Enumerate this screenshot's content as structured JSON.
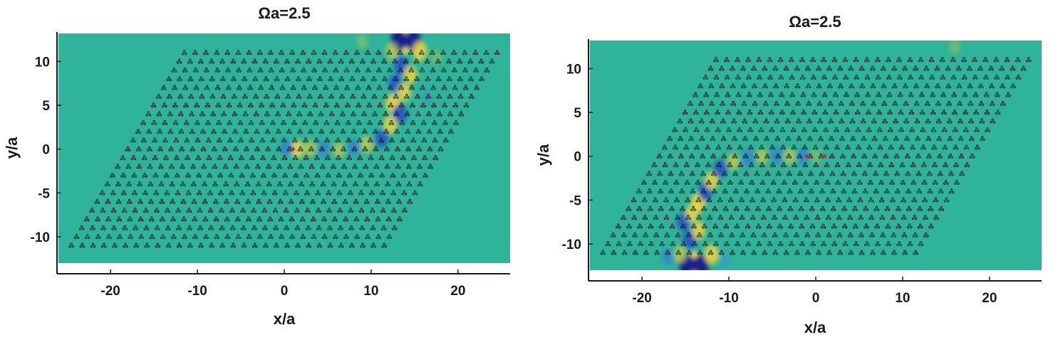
{
  "chart_data": [
    {
      "type": "heatmap",
      "title": "Ωa=2.5",
      "xlabel": "x/a",
      "ylabel": "y/a",
      "xlim": [
        -26,
        26
      ],
      "ylim": [
        -13,
        13.2
      ],
      "xticks": [
        -20,
        -10,
        0,
        10,
        20
      ],
      "yticks": [
        -10,
        -5,
        0,
        5,
        10
      ],
      "background_color": "#2fb39a",
      "lattice": {
        "corners": [
          [
            -24.5,
            -11
          ],
          [
            -11.5,
            11
          ],
          [
            24.5,
            11
          ],
          [
            11.5,
            -11
          ]
        ],
        "marker_color": "#111111"
      },
      "sources": [
        [
          1,
          0
        ]
      ],
      "field_blobs": [
        {
          "x": 14,
          "y": 12.2,
          "value": 1.0
        },
        {
          "x": 13.2,
          "y": 12.4,
          "value": -0.9
        },
        {
          "x": 14.8,
          "y": 12.4,
          "value": -0.9
        },
        {
          "x": 15.6,
          "y": 11.2,
          "value": 0.7
        },
        {
          "x": 12.4,
          "y": 11.2,
          "value": 0.5
        },
        {
          "x": 13.5,
          "y": 9.5,
          "value": -0.7
        },
        {
          "x": 14.5,
          "y": 8.5,
          "value": 0.6
        },
        {
          "x": 12.8,
          "y": 7.5,
          "value": -0.6
        },
        {
          "x": 13.8,
          "y": 6.5,
          "value": 0.6
        },
        {
          "x": 12.5,
          "y": 5.2,
          "value": 0.7
        },
        {
          "x": 13.3,
          "y": 4.0,
          "value": -0.7
        },
        {
          "x": 12.2,
          "y": 2.8,
          "value": 0.6
        },
        {
          "x": 11.2,
          "y": 1.2,
          "value": -0.6
        },
        {
          "x": 9.5,
          "y": 0.5,
          "value": 0.5
        },
        {
          "x": 8.0,
          "y": 0.2,
          "value": -0.5
        },
        {
          "x": 6.3,
          "y": -0.1,
          "value": 0.4
        },
        {
          "x": 4.5,
          "y": 0.0,
          "value": -0.45
        },
        {
          "x": 3.0,
          "y": 0.1,
          "value": 0.4
        },
        {
          "x": 1.5,
          "y": 0.0,
          "value": 0.6
        },
        {
          "x": 0.3,
          "y": 0.1,
          "value": -0.5
        },
        {
          "x": 17.5,
          "y": 10.5,
          "value": 0.3
        },
        {
          "x": 9.0,
          "y": 12.3,
          "value": 0.3
        },
        {
          "x": 16.5,
          "y": 6.0,
          "value": -0.3
        }
      ]
    },
    {
      "type": "heatmap",
      "title": "Ωa=2.5",
      "xlabel": "x/a",
      "ylabel": "y/a",
      "xlim": [
        -26,
        26
      ],
      "ylim": [
        -13,
        13.2
      ],
      "xticks": [
        -20,
        -10,
        0,
        10,
        20
      ],
      "yticks": [
        -10,
        -5,
        0,
        5,
        10
      ],
      "background_color": "#2fb39a",
      "lattice": {
        "corners": [
          [
            -24.5,
            -11
          ],
          [
            -11.5,
            11
          ],
          [
            24.5,
            11
          ],
          [
            11.5,
            -11
          ]
        ],
        "marker_color": "#111111"
      },
      "sources": [
        [
          -1,
          0
        ],
        [
          1,
          0
        ]
      ],
      "field_blobs": [
        {
          "x": -14,
          "y": -12.2,
          "value": 1.0
        },
        {
          "x": -13.2,
          "y": -12.4,
          "value": -0.9
        },
        {
          "x": -14.8,
          "y": -12.4,
          "value": -0.9
        },
        {
          "x": -12.0,
          "y": -11.2,
          "value": 0.7
        },
        {
          "x": -15.6,
          "y": -11.2,
          "value": 0.5
        },
        {
          "x": -14.5,
          "y": -9.5,
          "value": -0.7
        },
        {
          "x": -13.5,
          "y": -8.5,
          "value": 0.6
        },
        {
          "x": -15.2,
          "y": -7.5,
          "value": -0.6
        },
        {
          "x": -14.2,
          "y": -6.5,
          "value": 0.6
        },
        {
          "x": -13.5,
          "y": -5.2,
          "value": 0.7
        },
        {
          "x": -12.7,
          "y": -4.0,
          "value": -0.7
        },
        {
          "x": -12.0,
          "y": -2.8,
          "value": 0.6
        },
        {
          "x": -11.0,
          "y": -1.4,
          "value": -0.6
        },
        {
          "x": -9.5,
          "y": -0.6,
          "value": 0.5
        },
        {
          "x": -7.8,
          "y": -0.2,
          "value": -0.5
        },
        {
          "x": -6.2,
          "y": 0.0,
          "value": 0.4
        },
        {
          "x": -4.5,
          "y": 0.1,
          "value": -0.45
        },
        {
          "x": -3.0,
          "y": 0.0,
          "value": 0.4
        },
        {
          "x": -1.5,
          "y": 0.0,
          "value": -0.4
        },
        {
          "x": 0.0,
          "y": 0.0,
          "value": 0.35
        },
        {
          "x": 16.0,
          "y": 12.5,
          "value": 0.3
        },
        {
          "x": -17.0,
          "y": -11.5,
          "value": -0.4
        },
        {
          "x": -10.5,
          "y": -11.8,
          "value": -0.3
        }
      ]
    }
  ]
}
